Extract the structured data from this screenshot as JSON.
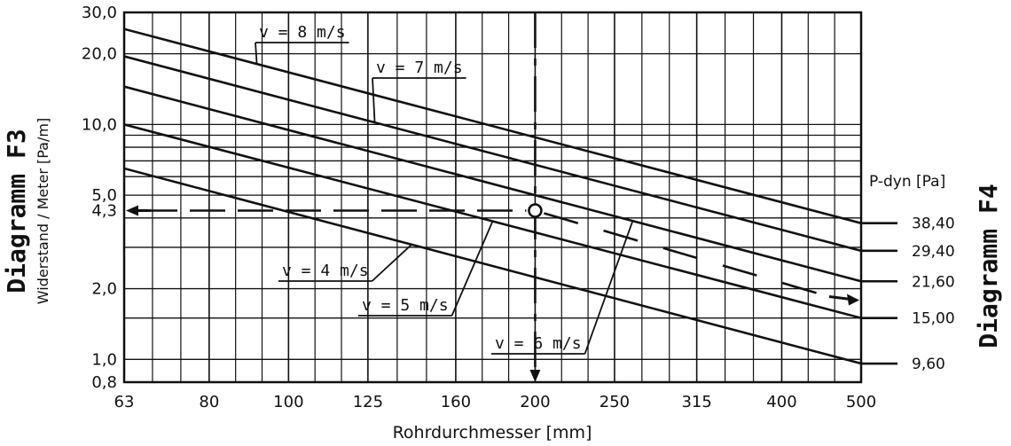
{
  "chart_data": {
    "type": "line",
    "title": "",
    "xlabel": "Rohrdurchmesser [mm]",
    "ylabel": "Widerstand / Meter [Pa/m]",
    "left_diagram": "Diagramm F3",
    "right_diagram": "Diagramm F4",
    "right_header": "P-dyn [Pa]",
    "x_log": true,
    "y_log": true,
    "xlim": [
      63,
      500
    ],
    "ylim": [
      0.8,
      30
    ],
    "x_ticks": [
      63,
      80,
      100,
      125,
      160,
      200,
      250,
      315,
      400,
      500
    ],
    "x_tick_labels": [
      "63",
      "80",
      "100",
      "125",
      "160",
      "200",
      "250",
      "315",
      "400",
      "500"
    ],
    "y_tick_labels": [
      {
        "value": 30,
        "label": "30,0"
      },
      {
        "value": 20,
        "label": "20,0"
      },
      {
        "value": 10,
        "label": "10,0"
      },
      {
        "value": 5,
        "label": "5,0"
      },
      {
        "value": 4.3,
        "label": "4,3"
      },
      {
        "value": 2,
        "label": "2,0"
      },
      {
        "value": 1,
        "label": "1,0"
      },
      {
        "value": 0.8,
        "label": "0,8"
      }
    ],
    "y_grid": [
      0.8,
      1,
      1.5,
      2,
      3,
      4,
      5,
      6,
      7,
      8,
      9,
      10,
      20,
      30
    ],
    "series": [
      {
        "name": "v = 8 m/s",
        "points": [
          [
            63,
            25.5
          ],
          [
            500,
            3.8
          ]
        ],
        "pdyn": "38,40"
      },
      {
        "name": "v = 7 m/s",
        "points": [
          [
            63,
            19.5
          ],
          [
            500,
            2.9
          ]
        ],
        "pdyn": "29,40"
      },
      {
        "name": "v = 6 m/s",
        "points": [
          [
            63,
            14.5
          ],
          [
            500,
            2.15
          ]
        ],
        "pdyn": "21,60"
      },
      {
        "name": "v = 5 m/s",
        "points": [
          [
            63,
            10
          ],
          [
            500,
            1.5
          ]
        ],
        "pdyn": "15,00"
      },
      {
        "name": "v = 4 m/s",
        "points": [
          [
            63,
            6.5
          ],
          [
            500,
            0.96
          ]
        ],
        "pdyn": "9,60"
      }
    ],
    "annotations": {
      "reading_x": 200,
      "reading_y": 4.3,
      "reading_label": "4,3"
    }
  }
}
